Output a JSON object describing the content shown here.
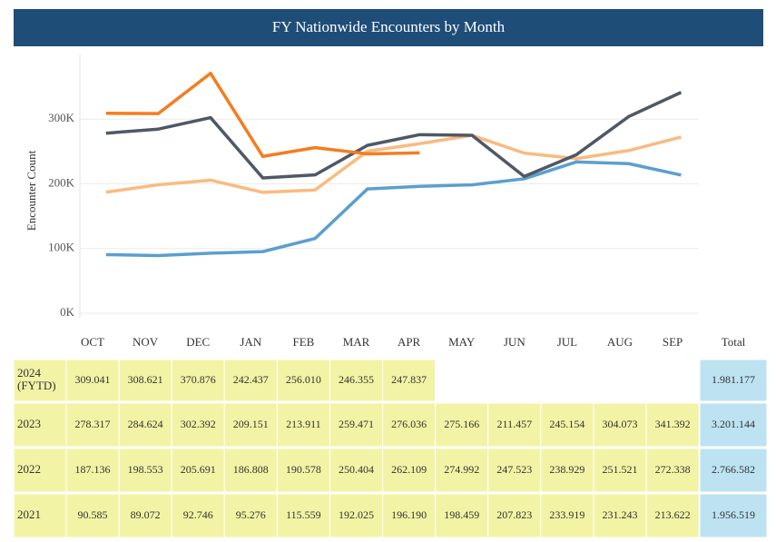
{
  "chart_data": {
    "type": "line",
    "title": "FY Nationwide Encounters by Month",
    "y_label": "Encounter Count",
    "total_header": "Total",
    "categories": [
      "OCT",
      "NOV",
      "DEC",
      "JAN",
      "FEB",
      "MAR",
      "APR",
      "MAY",
      "JUN",
      "JUL",
      "AUG",
      "SEP"
    ],
    "ylim": [
      0,
      400000
    ],
    "yticks": [
      {
        "value": 0,
        "label": "0K"
      },
      {
        "value": 100000,
        "label": "100K"
      },
      {
        "value": 200000,
        "label": "200K"
      },
      {
        "value": 300000,
        "label": "300K"
      }
    ],
    "grid": true,
    "series": [
      {
        "name": "2024 (FYTD)",
        "color": "#f57c20",
        "values": [
          309041,
          308621,
          370876,
          242437,
          256010,
          246355,
          247837,
          null,
          null,
          null,
          null,
          null
        ],
        "value_labels": [
          "309.041",
          "308.621",
          "370.876",
          "242.437",
          "256.010",
          "246.355",
          "247.837",
          null,
          null,
          null,
          null,
          null
        ],
        "total": "1.981.177"
      },
      {
        "name": "2023",
        "color": "#4f5866",
        "values": [
          278317,
          284624,
          302392,
          209151,
          213911,
          259471,
          276036,
          275166,
          211457,
          245154,
          304073,
          341392
        ],
        "value_labels": [
          "278.317",
          "284.624",
          "302.392",
          "209.151",
          "213.911",
          "259.471",
          "276.036",
          "275.166",
          "211.457",
          "245.154",
          "304.073",
          "341.392"
        ],
        "total": "3.201.144"
      },
      {
        "name": "2022",
        "color": "#f9bb80",
        "values": [
          187136,
          198553,
          205691,
          186808,
          190578,
          250404,
          262109,
          274992,
          247523,
          238929,
          251521,
          272338
        ],
        "value_labels": [
          "187.136",
          "198.553",
          "205.691",
          "186.808",
          "190.578",
          "250.404",
          "262.109",
          "274.992",
          "247.523",
          "238.929",
          "251.521",
          "272.338"
        ],
        "total": "2.766.582"
      },
      {
        "name": "2021",
        "color": "#5b9fce",
        "values": [
          90585,
          89072,
          92746,
          95276,
          115559,
          192025,
          196190,
          198459,
          207823,
          233919,
          231243,
          213622
        ],
        "value_labels": [
          "90.585",
          "89.072",
          "92.746",
          "95.276",
          "115.559",
          "192.025",
          "196.190",
          "198.459",
          "207.823",
          "233.919",
          "231.243",
          "213.622"
        ],
        "total": "1.956.519"
      }
    ]
  }
}
